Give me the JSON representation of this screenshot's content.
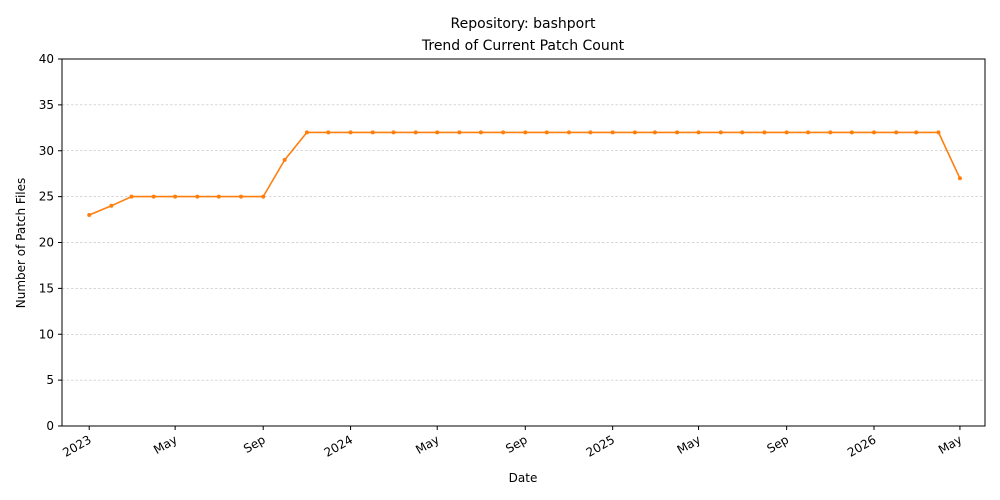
{
  "chart_data": {
    "type": "line",
    "title": "Repository: bashport",
    "subtitle": "Trend of Current Patch Count",
    "xlabel": "Date",
    "ylabel": "Number of Patch Files",
    "ylim": [
      0,
      40
    ],
    "xlim": [
      "2022-11-24",
      "2026-06-05"
    ],
    "y_ticks": [
      0,
      5,
      10,
      15,
      20,
      25,
      30,
      35,
      40
    ],
    "x_ticks": [
      {
        "date": "2023-01-01",
        "label": "2023"
      },
      {
        "date": "2023-05-01",
        "label": "May"
      },
      {
        "date": "2023-09-01",
        "label": "Sep"
      },
      {
        "date": "2024-01-01",
        "label": "2024"
      },
      {
        "date": "2024-05-01",
        "label": "May"
      },
      {
        "date": "2024-09-01",
        "label": "Sep"
      },
      {
        "date": "2025-01-01",
        "label": "2025"
      },
      {
        "date": "2025-05-01",
        "label": "May"
      },
      {
        "date": "2025-09-01",
        "label": "Sep"
      },
      {
        "date": "2026-01-01",
        "label": "2026"
      },
      {
        "date": "2026-05-01",
        "label": "May"
      }
    ],
    "grid": "horizontal-dashed",
    "series": [
      {
        "color": "#ff7f0e",
        "x": [
          "2023-01-01",
          "2023-02-01",
          "2023-03-01",
          "2023-04-01",
          "2023-05-01",
          "2023-06-01",
          "2023-07-01",
          "2023-08-01",
          "2023-09-01",
          "2023-10-01",
          "2023-11-01",
          "2023-12-01",
          "2024-01-01",
          "2024-02-01",
          "2024-03-01",
          "2024-04-01",
          "2024-05-01",
          "2024-06-01",
          "2024-07-01",
          "2024-08-01",
          "2024-09-01",
          "2024-10-01",
          "2024-11-01",
          "2024-12-01",
          "2025-01-01",
          "2025-02-01",
          "2025-03-01",
          "2025-04-01",
          "2025-05-01",
          "2025-06-01",
          "2025-07-01",
          "2025-08-01",
          "2025-09-01",
          "2025-10-01",
          "2025-11-01",
          "2025-12-01",
          "2026-01-01",
          "2026-02-01",
          "2026-03-01",
          "2026-04-01",
          "2026-05-01"
        ],
        "values": [
          23,
          24,
          25,
          25,
          25,
          25,
          25,
          25,
          25,
          29,
          32,
          32,
          32,
          32,
          32,
          32,
          32,
          32,
          32,
          32,
          32,
          32,
          32,
          32,
          32,
          32,
          32,
          32,
          32,
          32,
          32,
          32,
          32,
          32,
          32,
          32,
          32,
          32,
          32,
          32,
          27
        ]
      }
    ]
  }
}
